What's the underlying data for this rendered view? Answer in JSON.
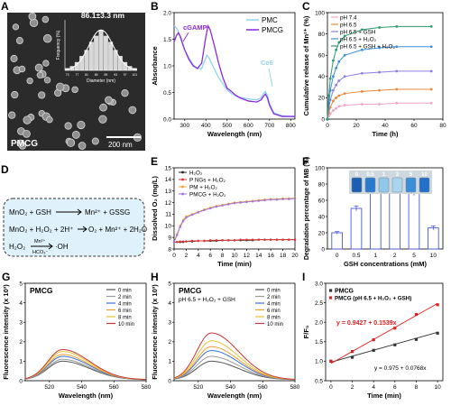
{
  "panels": {
    "A": {
      "letter": "A",
      "label": "PMCG",
      "scale": "200 nm",
      "hist": {
        "title": "86.1±3.3 nm",
        "xlabel": "Diameter (nm)",
        "ylabel": "Frequency (%)",
        "categories": [
          "73",
          "75",
          "77",
          "79",
          "81",
          "83",
          "85",
          "87",
          "89",
          "91",
          "93",
          "95",
          "97",
          "99",
          "101"
        ],
        "values": [
          1,
          2,
          4,
          7,
          10,
          14,
          17,
          20,
          17,
          14,
          10,
          7,
          4,
          2,
          1
        ]
      }
    },
    "B": {
      "letter": "B",
      "xlabel": "Wavelength (nm)",
      "ylabel": "Absorbance",
      "ticks_x": [
        "300",
        "400",
        "500",
        "600",
        "700",
        "800"
      ],
      "ticks_y": [
        "0.0",
        "0.5",
        "1.0",
        "1.5",
        "2.0"
      ],
      "legend": [
        "PMC",
        "PMCG"
      ],
      "ann": [
        "cGAMP",
        "Ce6"
      ],
      "colors": [
        "#8ed4ee",
        "#8a2be2"
      ]
    },
    "C": {
      "letter": "C",
      "xlabel": "Time (h)",
      "ylabel": "Cumulative release of Mn²⁺ (%)",
      "ticks_x": [
        "0",
        "20",
        "40",
        "60",
        "80"
      ],
      "ticks_y": [
        "0",
        "20",
        "40",
        "60",
        "80",
        "100"
      ],
      "legend": [
        "pH 7.4",
        "pH 6.5",
        "pH 6.5 + GSH",
        "pH 6.5 + H₂O₂",
        "pH 6.5 + GSH + H₂O₂"
      ],
      "colors": [
        "#f4a4c8",
        "#e88a3a",
        "#8d7ee0",
        "#3c8fd8",
        "#2a9d6e"
      ]
    },
    "D": {
      "letter": "D",
      "eq1a": "MnO₂ + GSH",
      "eq1b": "Mn²⁺ + GSSG",
      "eq2a": "MnO₂ + H₂O₂ + 2H⁺",
      "eq2b": "O₂ + Mn²⁺ + 2H₂O",
      "eq3a": "H₂O₂",
      "eq3top": "Mn²⁺",
      "eq3bot": "HCO₃⁻",
      "eq3b": "·OH"
    },
    "E": {
      "letter": "E",
      "xlabel": "Time (min)",
      "ylabel": "Dissolved O₂ (mg/L)",
      "ticks_x": [
        "0",
        "2",
        "4",
        "6",
        "8",
        "10",
        "12",
        "14",
        "16",
        "18",
        "20"
      ],
      "ticks_y": [
        "8",
        "9",
        "10",
        "11",
        "12",
        "13",
        "14",
        "15"
      ],
      "legend": [
        "H₂O₂",
        "P NGs + H₂O₂",
        "PM + H₂O₂",
        "PMCG + H₂O₂"
      ],
      "colors": [
        "#222222",
        "#e03030",
        "#f0a030",
        "#a070e0"
      ]
    },
    "F": {
      "letter": "F",
      "xlabel": "GSH concentrations (mM)",
      "ylabel": "Degradation percentage of MB (%)",
      "ticks_y": [
        "0",
        "20",
        "40",
        "60",
        "80",
        "100"
      ],
      "vial_labels": [
        "0",
        "0.5",
        "1",
        "2",
        "5",
        "10"
      ]
    },
    "G": {
      "letter": "G",
      "title": "PMCG",
      "xlabel": "Wavelength (nm)",
      "ylabel": "Fluorescence intensity (x 10³)",
      "ticks_x": [
        "520",
        "540",
        "560",
        "580"
      ],
      "ticks_y": [
        "0",
        "1",
        "2",
        "3",
        "4",
        "5"
      ],
      "legend": [
        "0 min",
        "2 min",
        "4 min",
        "6 min",
        "8 min",
        "10 min"
      ]
    },
    "H": {
      "letter": "H",
      "title": "PMCG",
      "subtitle": "pH 6.5 + H₂O₂ + GSH",
      "xlabel": "Wavelength (nm)",
      "ylabel": "Fluorescence intensity (x 10³)",
      "ticks_x": [
        "520",
        "540",
        "560",
        "580"
      ],
      "ticks_y": [
        "0",
        "1",
        "2",
        "3",
        "4",
        "5"
      ],
      "legend": [
        "0 min",
        "2 min",
        "4 min",
        "6 min",
        "8 min",
        "10 min"
      ]
    },
    "I": {
      "letter": "I",
      "xlabel": "Time (min)",
      "ylabel": "F/F₀",
      "ticks_x": [
        "0",
        "2",
        "4",
        "6",
        "8",
        "10"
      ],
      "ticks_y": [
        "0.5",
        "1.0",
        "1.5",
        "2.0",
        "2.5",
        "3.0"
      ],
      "legend": [
        "PMCG",
        "PMCG (pH 6.5 + H₂O₂ + GSH)"
      ],
      "eq_red": "y = 0.9427 + 0.1539x",
      "eq_black": "y = 0.975 + 0.0768x"
    }
  },
  "chart_data": [
    {
      "panel": "A",
      "type": "bar",
      "categories": [
        "73",
        "75",
        "77",
        "79",
        "81",
        "83",
        "85",
        "87",
        "89",
        "91",
        "93",
        "95",
        "97",
        "99",
        "101"
      ],
      "values": [
        1,
        2,
        4,
        7,
        10,
        14,
        17,
        20,
        17,
        14,
        10,
        7,
        4,
        2,
        1
      ],
      "title": "86.1±3.3 nm",
      "xlabel": "Diameter (nm)",
      "ylabel": "Frequency (%)"
    },
    {
      "panel": "B",
      "type": "line",
      "xlabel": "Wavelength (nm)",
      "ylabel": "Absorbance",
      "xlim": [
        250,
        820
      ],
      "ylim": [
        0,
        2.0
      ],
      "series": [
        {
          "name": "PMC",
          "x": [
            250,
            260,
            270,
            280,
            290,
            300,
            320,
            340,
            360,
            380,
            400,
            405,
            415,
            430,
            460,
            500,
            520,
            550,
            600,
            640,
            660,
            670,
            680,
            690,
            700,
            720,
            760,
            800,
            820
          ],
          "y": [
            1.75,
            1.72,
            1.65,
            1.52,
            1.4,
            1.3,
            1.15,
            1.02,
            0.95,
            0.95,
            1.15,
            1.2,
            1.15,
            1.02,
            0.78,
            0.55,
            0.48,
            0.42,
            0.38,
            0.36,
            0.4,
            0.47,
            0.52,
            0.45,
            0.3,
            0.12,
            0.06,
            0.05,
            0.05
          ]
        },
        {
          "name": "PMCG",
          "x": [
            250,
            255,
            260,
            270,
            280,
            290,
            300,
            320,
            340,
            360,
            380,
            400,
            410,
            420,
            440,
            460,
            480,
            500,
            520,
            540,
            560,
            600,
            640,
            660,
            670,
            680,
            690,
            700,
            720,
            760,
            800,
            820
          ],
          "y": [
            1.45,
            1.5,
            1.56,
            1.62,
            1.55,
            1.42,
            1.3,
            1.12,
            1.0,
            0.95,
            1.05,
            1.55,
            1.75,
            1.68,
            1.38,
            1.05,
            0.78,
            0.58,
            0.52,
            0.45,
            0.4,
            0.34,
            0.32,
            0.36,
            0.42,
            0.47,
            0.4,
            0.26,
            0.1,
            0.05,
            0.05,
            0.05
          ]
        }
      ]
    },
    {
      "panel": "C",
      "type": "line",
      "xlabel": "Time (h)",
      "ylabel": "Cumulative release of Mn²⁺ (%)",
      "xlim": [
        0,
        80
      ],
      "ylim": [
        0,
        100
      ],
      "x": [
        0,
        1,
        2,
        4,
        6,
        8,
        12,
        24,
        36,
        48,
        72
      ],
      "series": [
        {
          "name": "pH 7.4",
          "values": [
            0,
            3,
            5,
            8,
            10,
            12,
            13,
            14,
            14,
            15,
            15
          ]
        },
        {
          "name": "pH 6.5",
          "values": [
            0,
            6,
            11,
            17,
            20,
            22,
            24,
            26,
            27,
            28,
            28
          ]
        },
        {
          "name": "pH 6.5 + GSH",
          "values": [
            0,
            10,
            18,
            27,
            32,
            36,
            40,
            43,
            44,
            45,
            45
          ]
        },
        {
          "name": "pH 6.5 + H₂O₂",
          "values": [
            0,
            15,
            27,
            40,
            48,
            54,
            60,
            65,
            67,
            68,
            68
          ]
        },
        {
          "name": "pH 6.5 + GSH + H₂O₂",
          "values": [
            0,
            22,
            38,
            55,
            65,
            72,
            78,
            84,
            86,
            87,
            87
          ]
        }
      ]
    },
    {
      "panel": "E",
      "type": "line",
      "xlabel": "Time (min)",
      "ylabel": "Dissolved O₂ (mg/L)",
      "xlim": [
        0,
        20
      ],
      "ylim": [
        8,
        15
      ],
      "x": [
        0,
        0.5,
        1,
        1.5,
        2,
        3,
        4,
        5,
        6,
        7,
        8,
        9,
        10,
        11,
        12,
        13,
        14,
        15,
        16,
        17,
        18,
        19,
        20
      ],
      "series": [
        {
          "name": "H₂O₂",
          "values": [
            8.6,
            8.6,
            8.6,
            8.6,
            8.65,
            8.65,
            8.7,
            8.7,
            8.7,
            8.7,
            8.75,
            8.75,
            8.75,
            8.75,
            8.75,
            8.75,
            8.8,
            8.8,
            8.8,
            8.8,
            8.8,
            8.8,
            8.8
          ]
        },
        {
          "name": "P NGs + H₂O₂",
          "values": [
            8.6,
            8.6,
            8.65,
            8.65,
            8.65,
            8.7,
            8.7,
            8.7,
            8.75,
            8.75,
            8.75,
            8.75,
            8.75,
            8.8,
            8.8,
            8.8,
            8.8,
            8.8,
            8.8,
            8.8,
            8.8,
            8.8,
            8.8
          ]
        },
        {
          "name": "PM + H₂O₂",
          "values": [
            8.6,
            9.3,
            10.0,
            10.5,
            10.8,
            11.0,
            11.2,
            11.4,
            11.55,
            11.7,
            11.8,
            11.9,
            12.0,
            12.05,
            12.1,
            12.15,
            12.2,
            12.25,
            12.3,
            12.3,
            12.35,
            12.35,
            12.4
          ]
        },
        {
          "name": "PMCG + H₂O₂",
          "values": [
            8.6,
            9.2,
            9.9,
            10.4,
            10.7,
            10.95,
            11.15,
            11.35,
            11.5,
            11.65,
            11.75,
            11.85,
            11.95,
            12.0,
            12.05,
            12.1,
            12.15,
            12.2,
            12.25,
            12.25,
            12.3,
            12.3,
            12.35
          ]
        }
      ]
    },
    {
      "panel": "F",
      "type": "bar",
      "xlabel": "GSH concentrations (mM)",
      "ylabel": "Degradation percentage of MB (%)",
      "ylim": [
        0,
        100
      ],
      "categories": [
        "0",
        "0.5",
        "1",
        "2",
        "5",
        "10"
      ],
      "values": [
        20,
        50,
        88,
        85,
        69,
        26
      ],
      "errors": [
        1.5,
        3,
        3,
        3,
        3,
        2.5
      ]
    },
    {
      "panel": "G",
      "type": "line",
      "xlabel": "Wavelength (nm)",
      "ylabel": "Fluorescence intensity (x 10³)",
      "xlim": [
        505,
        580
      ],
      "ylim": [
        0,
        5
      ],
      "peak_x": 528,
      "series": [
        {
          "name": "0 min",
          "peak": 0.95
        },
        {
          "name": "2 min",
          "peak": 1.05
        },
        {
          "name": "4 min",
          "peak": 1.2
        },
        {
          "name": "6 min",
          "peak": 1.3
        },
        {
          "name": "8 min",
          "peak": 1.45
        },
        {
          "name": "10 min",
          "peak": 1.55
        }
      ]
    },
    {
      "panel": "H",
      "type": "line",
      "xlabel": "Wavelength (nm)",
      "ylabel": "Fluorescence intensity (x 10³)",
      "xlim": [
        505,
        580
      ],
      "ylim": [
        0,
        5
      ],
      "peak_x": 528,
      "series": [
        {
          "name": "0 min",
          "peak": 0.95
        },
        {
          "name": "2 min",
          "peak": 1.2
        },
        {
          "name": "4 min",
          "peak": 1.5
        },
        {
          "name": "6 min",
          "peak": 1.7
        },
        {
          "name": "8 min",
          "peak": 2.0
        },
        {
          "name": "10 min",
          "peak": 2.4
        }
      ]
    },
    {
      "panel": "I",
      "type": "scatter",
      "xlabel": "Time (min)",
      "ylabel": "F/F₀",
      "xlim": [
        0,
        10
      ],
      "ylim": [
        0.5,
        3.0
      ],
      "x": [
        0,
        2,
        4,
        6,
        8,
        10
      ],
      "series": [
        {
          "name": "PMCG",
          "values": [
            1.0,
            1.1,
            1.28,
            1.42,
            1.56,
            1.72
          ]
        },
        {
          "name": "PMCG (pH 6.5 + H₂O₂ + GSH)",
          "values": [
            1.0,
            1.25,
            1.55,
            1.85,
            2.2,
            2.45
          ]
        }
      ]
    }
  ],
  "colors": {
    "time_series": [
      "#555555",
      "#9a9a9a",
      "#3a6fd8",
      "#f0a030",
      "#e8c330",
      "#c83838"
    ],
    "bar_fill": "#ffffff",
    "bar_edge": "#4a5ad8",
    "box_fill": "#dff1fa"
  }
}
